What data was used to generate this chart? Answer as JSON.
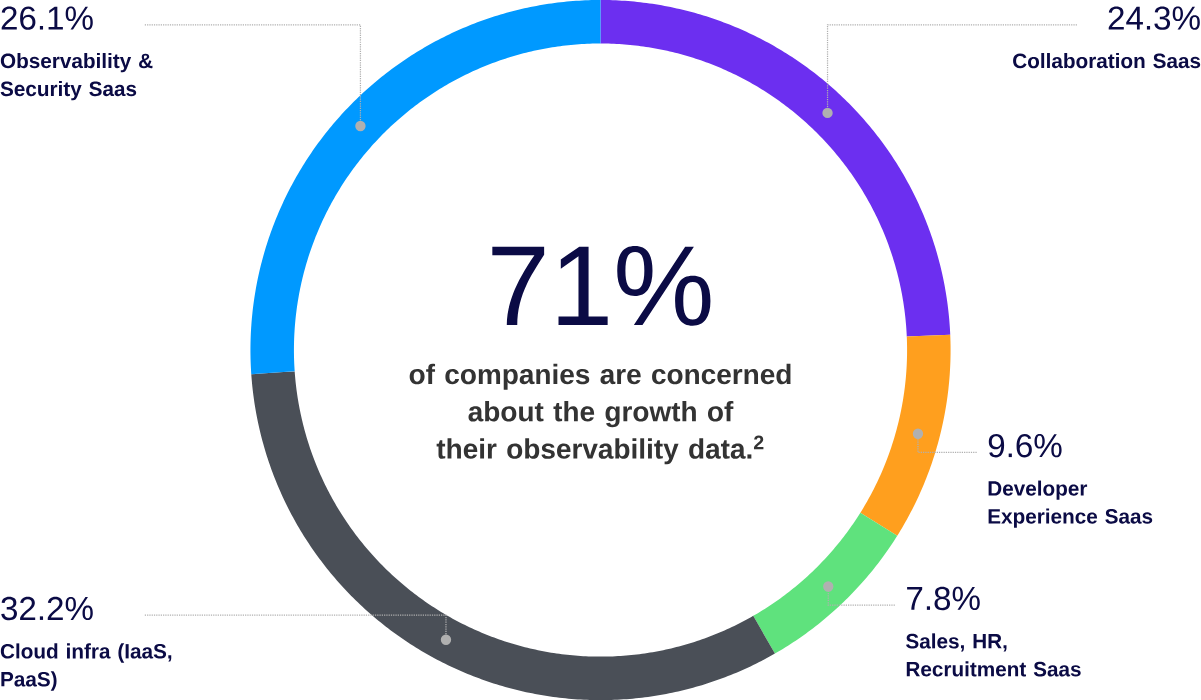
{
  "chart_data": {
    "type": "donut",
    "categories": [
      "Collaboration Saas",
      "Developer Experience Saas",
      "Sales, HR, Recruitment Saas",
      "Cloud infra (IaaS, PaaS)",
      "Observability & Security Saas"
    ],
    "values": [
      24.3,
      9.6,
      7.8,
      32.2,
      26.1
    ],
    "colors": [
      "#6c2ff0",
      "#ff9f1e",
      "#5fe27d",
      "#4a4f57",
      "#0099ff"
    ],
    "value_labels": [
      "24.3%",
      "9.6%",
      "7.8%",
      "32.2%",
      "26.1%"
    ],
    "annotations": [
      "71%",
      "of companies are concerned about the growth of their observability data.$^{2}$"
    ]
  }
}
